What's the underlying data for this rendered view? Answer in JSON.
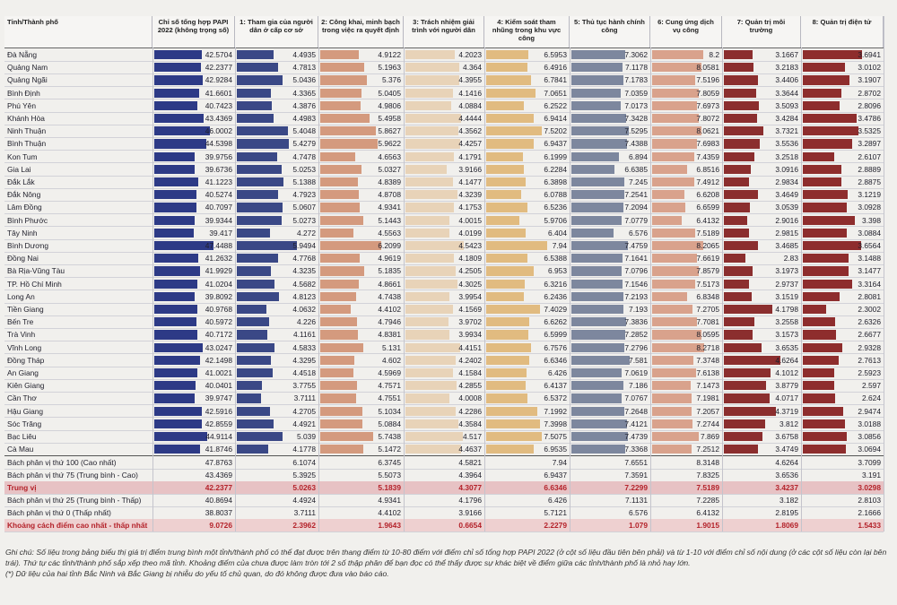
{
  "header": {
    "columns": [
      "Tỉnh/Thành phố",
      "Chỉ số tổng hợp PAPI 2022 (không trọng số)",
      "1: Tham gia của người dân ở cấp cơ sở",
      "2: Công khai, minh bạch trong việc ra quyết định",
      "3: Trách nhiệm giải trình với người dân",
      "4: Kiểm soát tham nhũng trong khu vực công",
      "5: Thủ tục hành chính công",
      "6: Cung ứng dịch vụ công",
      "7: Quản trị môi trường",
      "8: Quản trị điện tử"
    ]
  },
  "bar_colors": [
    "#2d3a86",
    "#3a4886",
    "#d49a7e",
    "#e8d3b8",
    "#e1bb80",
    "#7d879e",
    "#d9a28c",
    "#8b2e2e",
    "#8e2d2d"
  ],
  "table": {
    "rows": [
      [
        "Đà Nẵng",
        42.5704,
        4.4935,
        4.9122,
        4.2023,
        6.5953,
        7.3062,
        8.2,
        3.1667,
        3.6941
      ],
      [
        "Quảng Nam",
        42.2377,
        4.7813,
        5.1963,
        4.364,
        6.4916,
        7.1178,
        8.0581,
        3.2183,
        3.0102
      ],
      [
        "Quảng Ngãi",
        42.9284,
        5.0436,
        5.376,
        4.3955,
        6.7841,
        7.1783,
        7.5196,
        3.4406,
        3.1907
      ],
      [
        "Bình Định",
        41.6601,
        4.3365,
        5.0405,
        4.1416,
        7.0651,
        7.0359,
        7.8059,
        3.3644,
        2.8702
      ],
      [
        "Phú Yên",
        40.7423,
        4.3876,
        4.9806,
        4.0884,
        6.2522,
        7.0173,
        7.6973,
        3.5093,
        2.8096
      ],
      [
        "Khánh Hòa",
        43.4369,
        4.4983,
        5.4958,
        4.4444,
        6.9414,
        7.3428,
        7.8072,
        3.4284,
        3.4786
      ],
      [
        "Ninh Thuận",
        46.0002,
        5.4048,
        5.8627,
        4.3562,
        7.5202,
        7.5295,
        8.0621,
        3.7321,
        3.5325
      ],
      [
        "Bình Thuận",
        44.5398,
        5.4279,
        5.9622,
        4.4257,
        6.9437,
        7.4388,
        7.6983,
        3.5536,
        3.2897
      ],
      [
        "Kon Tum",
        39.9756,
        4.7478,
        4.6563,
        4.1791,
        6.1999,
        6.894,
        7.4359,
        3.2518,
        2.6107
      ],
      [
        "Gia Lai",
        39.6736,
        5.0253,
        5.0327,
        3.9166,
        6.2284,
        6.6385,
        6.8516,
        3.0916,
        2.8889
      ],
      [
        "Đắk Lắk",
        41.1223,
        5.1388,
        4.8389,
        4.1477,
        6.3898,
        7.245,
        7.4912,
        2.9834,
        2.8875
      ],
      [
        "Đắk Nông",
        40.5274,
        4.7923,
        4.8708,
        4.3239,
        6.0788,
        7.2541,
        6.6208,
        3.4649,
        3.1219
      ],
      [
        "Lâm Đồng",
        40.7097,
        5.0607,
        4.9341,
        4.1753,
        6.5236,
        7.2094,
        6.6599,
        3.0539,
        3.0928
      ],
      [
        "Bình Phước",
        39.9344,
        5.0273,
        5.1443,
        4.0015,
        5.9706,
        7.0779,
        6.4132,
        2.9016,
        3.398
      ],
      [
        "Tây Ninh",
        39.417,
        4.272,
        4.5563,
        4.0199,
        6.404,
        6.576,
        7.5189,
        2.9815,
        3.0884
      ],
      [
        "Bình Dương",
        47.4488,
        5.9494,
        6.2099,
        4.5423,
        7.94,
        7.4759,
        8.2065,
        3.4685,
        3.6564
      ],
      [
        "Đồng Nai",
        41.2632,
        4.7768,
        4.9619,
        4.1809,
        6.5388,
        7.1641,
        7.6619,
        2.83,
        3.1488
      ],
      [
        "Bà Rịa-Vũng Tàu",
        41.9929,
        4.3235,
        5.1835,
        4.2505,
        6.953,
        7.0796,
        7.8579,
        3.1973,
        3.1477
      ],
      [
        "TP. Hồ Chí Minh",
        41.0204,
        4.5682,
        4.8661,
        4.3025,
        6.3216,
        7.1546,
        7.5173,
        2.9737,
        3.3164
      ],
      [
        "Long An",
        39.8092,
        4.8123,
        4.7438,
        3.9954,
        6.2436,
        7.2193,
        6.8348,
        3.1519,
        2.8081
      ],
      [
        "Tiền Giang",
        40.9768,
        4.0632,
        4.4102,
        4.1569,
        7.4029,
        7.193,
        7.2705,
        4.1798,
        2.3002
      ],
      [
        "Bến Tre",
        40.5972,
        4.226,
        4.7946,
        3.9702,
        6.6262,
        7.3836,
        7.7081,
        3.2558,
        2.6326
      ],
      [
        "Trà Vinh",
        40.7172,
        4.1161,
        4.8381,
        3.9934,
        6.5999,
        7.2852,
        8.0595,
        3.1573,
        2.6677
      ],
      [
        "Vĩnh Long",
        43.0247,
        4.5833,
        5.131,
        4.4151,
        6.7576,
        7.2796,
        8.2718,
        3.6535,
        2.9328
      ],
      [
        "Đồng Tháp",
        42.1498,
        4.3295,
        4.602,
        4.2402,
        6.6346,
        7.581,
        7.3748,
        4.6264,
        2.7613
      ],
      [
        "An Giang",
        41.0021,
        4.4518,
        4.5969,
        4.1584,
        6.426,
        7.0619,
        7.6138,
        4.1012,
        2.5923
      ],
      [
        "Kiên Giang",
        40.0401,
        3.7755,
        4.7571,
        4.2855,
        6.4137,
        7.186,
        7.1473,
        3.8779,
        2.597
      ],
      [
        "Cần Thơ",
        39.9747,
        3.7111,
        4.7551,
        4.0008,
        6.5372,
        7.0767,
        7.1981,
        4.0717,
        2.624
      ],
      [
        "Hậu Giang",
        42.5916,
        4.2705,
        5.1034,
        4.2286,
        7.1992,
        7.2648,
        7.2057,
        4.3719,
        2.9474
      ],
      [
        "Sóc Trăng",
        42.8559,
        4.4921,
        5.0884,
        4.3584,
        7.3998,
        7.4121,
        7.2744,
        3.812,
        3.0188
      ],
      [
        "Bạc Liêu",
        44.9114,
        5.039,
        5.7438,
        4.517,
        7.5075,
        7.4739,
        7.869,
        3.6758,
        3.0856
      ],
      [
        "Cà Mau",
        41.8746,
        4.1778,
        5.1472,
        4.4637,
        6.9535,
        7.3368,
        7.2512,
        3.4749,
        3.0694
      ]
    ]
  },
  "summary": {
    "rows": [
      [
        "Bách phân vị thứ 100 (Cao nhất)",
        47.8763,
        6.1074,
        6.3745,
        4.5821,
        7.94,
        7.6551,
        8.3148,
        4.6264,
        3.7099
      ],
      [
        "Bách phân vị thứ 75 (Trung bình - Cao)",
        43.4369,
        5.3925,
        5.5073,
        4.3964,
        6.9437,
        7.3591,
        7.8325,
        3.6536,
        3.191
      ],
      [
        "Trung vị",
        42.2377,
        5.0263,
        5.1839,
        4.3077,
        6.6346,
        7.2299,
        7.5189,
        3.4237,
        3.0298
      ],
      [
        "Bách phân vị thứ 25 (Trung bình - Thấp)",
        40.8694,
        4.4924,
        4.9341,
        4.1796,
        6.426,
        7.1131,
        7.2285,
        3.182,
        2.8103
      ],
      [
        "Bách phân vị thứ 0 (Thấp nhất)",
        38.8037,
        3.7111,
        4.4102,
        3.9166,
        5.7121,
        6.576,
        6.4132,
        2.8195,
        2.1666
      ],
      [
        "Khoảng cách điểm cao nhất - thấp nhất",
        9.0726,
        2.3962,
        1.9643,
        0.6654,
        2.2279,
        1.079,
        1.9015,
        1.8069,
        1.5433
      ]
    ]
  },
  "notes": [
    "Ghi chú: Số liệu trong bảng biểu thị giá trị điểm trung bình một tỉnh/thành phố có thể đạt được trên thang điểm từ 10-80 điểm với điểm chỉ số tổng hợp PAPI 2022 (ở cột số liệu đầu tiên bên phải) và từ 1-10 với điểm chỉ số nội dung (ở các cột số liệu còn lại bên trái). Thứ tự các tỉnh/thành phố sắp xếp theo mã tỉnh. Khoảng điểm của chưa được làm tròn tới 2 số thập phân để bạn đọc có thể thấy được sự khác biệt về điểm giữa các tỉnh/thành phố là nhỏ hay lớn.",
    "(*) Dữ liệu của hai tỉnh Bắc Ninh và Bắc Giang bị nhiễu do yếu tố chủ quan, do đó không được đưa vào báo cáo."
  ]
}
